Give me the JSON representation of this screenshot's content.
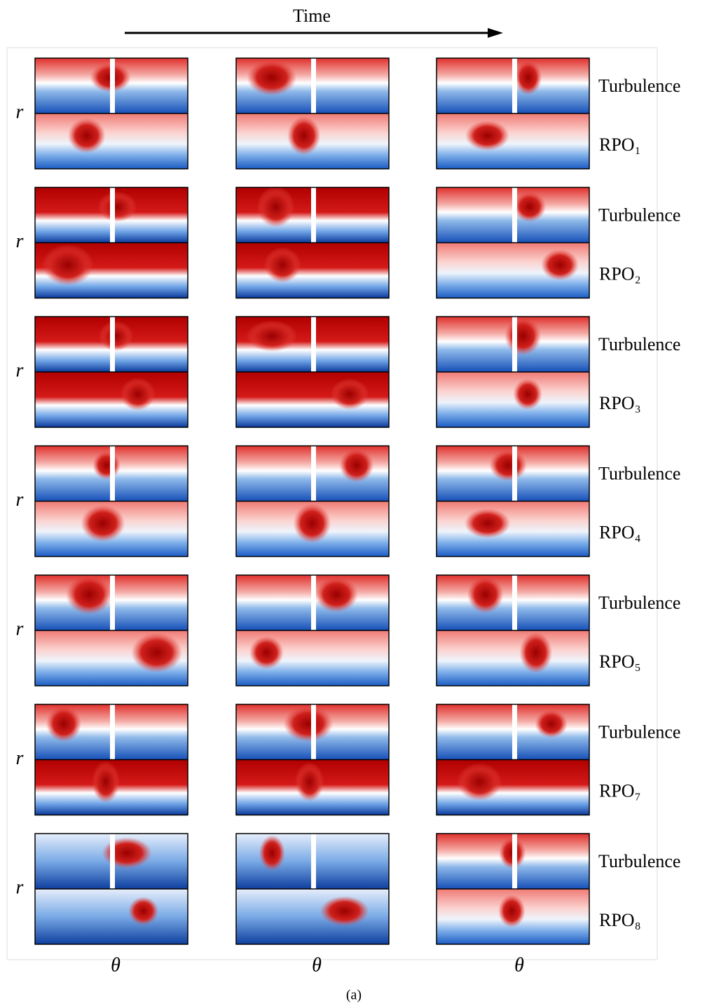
{
  "header": {
    "time_label": "Time",
    "caption": "(a)"
  },
  "x_labels": [
    "θ",
    "θ",
    "θ"
  ],
  "rows": [
    {
      "r_label": "r",
      "top_label": "Turbulence",
      "bottom_label": "RPO₁"
    },
    {
      "r_label": "r",
      "top_label": "Turbulence",
      "bottom_label": "RPO₂"
    },
    {
      "r_label": "r",
      "top_label": "Turbulence",
      "bottom_label": "RPO₃"
    },
    {
      "r_label": "r",
      "top_label": "Turbulence",
      "bottom_label": "RPO₄"
    },
    {
      "r_label": "r",
      "top_label": "Turbulence",
      "bottom_label": "RPO₅"
    },
    {
      "r_label": "r",
      "top_label": "Turbulence",
      "bottom_label": "RPO₇"
    },
    {
      "r_label": "r",
      "top_label": "Turbulence",
      "bottom_label": "RPO₈"
    }
  ]
}
